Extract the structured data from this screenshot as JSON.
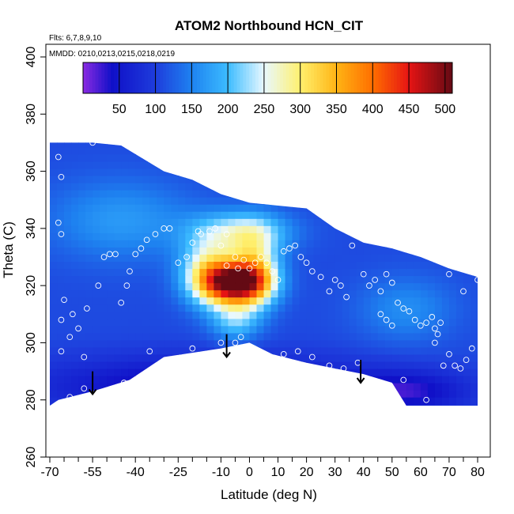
{
  "chart_data": {
    "type": "heatmap",
    "title": "ATOM2 Northbound HCN_CIT",
    "subtitle_lines": [
      "Flts: 6,7,8,9,10",
      "MMDD: 0210,0213,0215,0218,0219"
    ],
    "xlabel": "Latitude (deg N)",
    "ylabel": "Theta (C)",
    "xlim": [
      -70,
      80
    ],
    "ylim": [
      260,
      400
    ],
    "x_ticks": [
      -70,
      -55,
      -40,
      -25,
      -10,
      0,
      10,
      20,
      30,
      40,
      50,
      60,
      70,
      80
    ],
    "x_ticks_minor": [
      -65,
      -60,
      -50,
      -45,
      -35,
      -30,
      -20,
      -15,
      -5,
      5,
      15,
      25,
      35,
      45,
      55,
      65,
      75
    ],
    "y_ticks": [
      260,
      280,
      300,
      320,
      340,
      360,
      380,
      400
    ],
    "colorbar": {
      "range": [
        0,
        510
      ],
      "ticks": [
        50,
        100,
        150,
        200,
        250,
        300,
        350,
        400,
        450,
        500
      ],
      "stops": [
        {
          "v": 0,
          "c": "#8a2be2"
        },
        {
          "v": 40,
          "c": "#1010c8"
        },
        {
          "v": 100,
          "c": "#1e3cdc"
        },
        {
          "v": 150,
          "c": "#1e82f0"
        },
        {
          "v": 200,
          "c": "#3cbcff"
        },
        {
          "v": 250,
          "c": "#e8f8ff"
        },
        {
          "v": 300,
          "c": "#fff06e"
        },
        {
          "v": 350,
          "c": "#ffb414"
        },
        {
          "v": 400,
          "c": "#ff6e00"
        },
        {
          "v": 450,
          "c": "#e61414"
        },
        {
          "v": 510,
          "c": "#640a14"
        }
      ]
    },
    "coverage_top": [
      [
        -70,
        370
      ],
      [
        -55,
        370
      ],
      [
        -45,
        369
      ],
      [
        -30,
        360
      ],
      [
        -20,
        357
      ],
      [
        -10,
        352
      ],
      [
        0,
        349
      ],
      [
        10,
        348
      ],
      [
        20,
        347
      ],
      [
        30,
        340
      ],
      [
        40,
        335
      ],
      [
        50,
        333
      ],
      [
        60,
        330
      ],
      [
        70,
        326
      ],
      [
        80,
        323
      ]
    ],
    "coverage_bottom": [
      [
        -70,
        278
      ],
      [
        -67,
        280
      ],
      [
        -55,
        283
      ],
      [
        -42,
        287
      ],
      [
        -30,
        295
      ],
      [
        -10,
        298
      ],
      [
        0,
        300
      ],
      [
        8,
        296
      ],
      [
        20,
        293
      ],
      [
        30,
        291
      ],
      [
        40,
        289
      ],
      [
        50,
        286
      ],
      [
        55,
        278
      ],
      [
        80,
        278
      ]
    ],
    "field_background": 110,
    "field_features": [
      {
        "lat": -5,
        "theta": 321,
        "amp": 340,
        "sx": 8,
        "sy": 5
      },
      {
        "lat": -14,
        "theta": 325,
        "amp": 160,
        "sx": 7,
        "sy": 8
      },
      {
        "lat": 2,
        "theta": 326,
        "amp": 160,
        "sx": 6,
        "sy": 9
      },
      {
        "lat": -3,
        "theta": 339,
        "amp": 120,
        "sx": 12,
        "sy": 5
      },
      {
        "lat": -5,
        "theta": 308,
        "amp": 95,
        "sx": 6,
        "sy": 5
      },
      {
        "lat": -45,
        "theta": 343,
        "amp": 60,
        "sx": 18,
        "sy": 10
      },
      {
        "lat": 55,
        "theta": 312,
        "amp": 50,
        "sx": 12,
        "sy": 8
      },
      {
        "lat": -15,
        "theta": 285,
        "amp": -90,
        "sx": 40,
        "sy": 7
      },
      {
        "lat": 55,
        "theta": 283,
        "amp": -70,
        "sx": 15,
        "sy": 5
      }
    ],
    "sample_points": [
      [
        -67,
        365
      ],
      [
        -66,
        358
      ],
      [
        -67,
        342
      ],
      [
        -66,
        338
      ],
      [
        -65,
        315
      ],
      [
        -66,
        308
      ],
      [
        -66,
        297
      ],
      [
        -63,
        302
      ],
      [
        -60,
        305
      ],
      [
        -62,
        310
      ],
      [
        -57,
        312
      ],
      [
        -58,
        295
      ],
      [
        -63,
        281
      ],
      [
        -58,
        284
      ],
      [
        -55,
        370
      ],
      [
        -53,
        320
      ],
      [
        -51,
        330
      ],
      [
        -49,
        331
      ],
      [
        -47,
        331
      ],
      [
        -45,
        314
      ],
      [
        -43,
        320
      ],
      [
        -42,
        325
      ],
      [
        -40,
        331
      ],
      [
        -38,
        333
      ],
      [
        -36,
        336
      ],
      [
        -33,
        338
      ],
      [
        -30,
        340
      ],
      [
        -28,
        340
      ],
      [
        -44,
        286
      ],
      [
        -35,
        297
      ],
      [
        -25,
        328
      ],
      [
        -22,
        330
      ],
      [
        -20,
        335
      ],
      [
        -18,
        339
      ],
      [
        -17,
        338
      ],
      [
        -14,
        339
      ],
      [
        -12,
        340
      ],
      [
        -10,
        334
      ],
      [
        -8,
        338
      ],
      [
        -20,
        298
      ],
      [
        -10,
        300
      ],
      [
        -5,
        300
      ],
      [
        -3,
        302
      ],
      [
        -8,
        327
      ],
      [
        -5,
        330
      ],
      [
        -4,
        326
      ],
      [
        -2,
        329
      ],
      [
        0,
        326
      ],
      [
        2,
        328
      ],
      [
        4,
        330
      ],
      [
        6,
        328
      ],
      [
        8,
        325
      ],
      [
        10,
        322
      ],
      [
        12,
        332
      ],
      [
        14,
        333
      ],
      [
        16,
        334
      ],
      [
        18,
        330
      ],
      [
        20,
        328
      ],
      [
        22,
        325
      ],
      [
        12,
        296
      ],
      [
        17,
        297
      ],
      [
        22,
        295
      ],
      [
        28,
        292
      ],
      [
        33,
        291
      ],
      [
        38,
        293
      ],
      [
        25,
        323
      ],
      [
        28,
        318
      ],
      [
        30,
        322
      ],
      [
        32,
        320
      ],
      [
        34,
        316
      ],
      [
        36,
        334
      ],
      [
        40,
        324
      ],
      [
        42,
        320
      ],
      [
        44,
        322
      ],
      [
        46,
        318
      ],
      [
        48,
        324
      ],
      [
        50,
        321
      ],
      [
        46,
        310
      ],
      [
        48,
        308
      ],
      [
        50,
        306
      ],
      [
        52,
        314
      ],
      [
        54,
        312
      ],
      [
        56,
        311
      ],
      [
        58,
        308
      ],
      [
        60,
        306
      ],
      [
        62,
        307
      ],
      [
        64,
        309
      ],
      [
        65,
        305
      ],
      [
        66,
        303
      ],
      [
        67,
        307
      ],
      [
        65,
        300
      ],
      [
        70,
        296
      ],
      [
        72,
        292
      ],
      [
        74,
        291
      ],
      [
        76,
        294
      ],
      [
        78,
        298
      ],
      [
        80,
        322
      ],
      [
        68,
        292
      ],
      [
        54,
        287
      ],
      [
        46,
        286
      ],
      [
        62,
        280
      ],
      [
        70,
        324
      ],
      [
        75,
        318
      ]
    ],
    "arrows": [
      {
        "lat": -55,
        "theta": 290
      },
      {
        "lat": -8,
        "theta": 303
      },
      {
        "lat": 39,
        "theta": 294
      }
    ]
  }
}
